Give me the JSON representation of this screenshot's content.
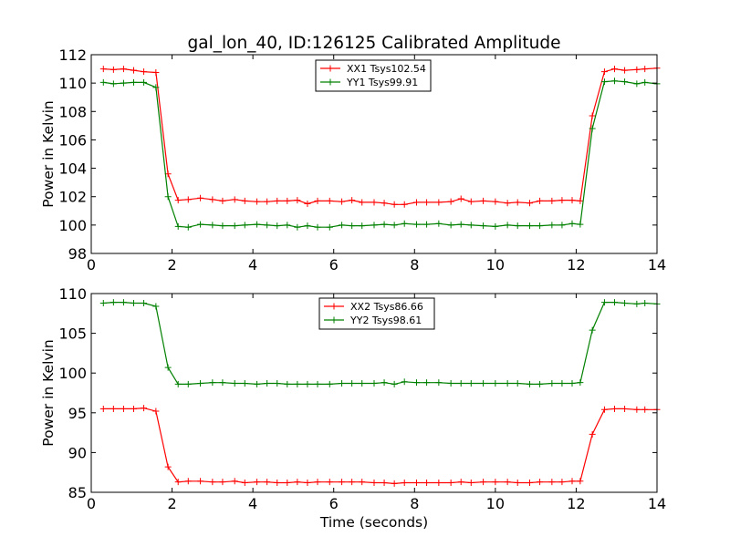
{
  "title": "gal_lon_40, ID:126125 Calibrated Amplitude",
  "colors": {
    "red": "#ff0000",
    "green": "#008000",
    "axis": "#000000"
  },
  "chart_data": [
    {
      "type": "line",
      "title": "gal_lon_40, ID:126125 Calibrated Amplitude",
      "xlabel": "",
      "ylabel": "Power in Kelvin",
      "xlim": [
        0,
        14
      ],
      "ylim": [
        98,
        112
      ],
      "xticks": [
        0,
        2,
        4,
        6,
        8,
        10,
        12,
        14
      ],
      "yticks": [
        98,
        100,
        102,
        104,
        106,
        108,
        110,
        112
      ],
      "xtick_labels": [
        "0",
        "2",
        "4",
        "6",
        "8",
        "10",
        "12",
        "14"
      ],
      "ytick_labels": [
        "98",
        "100",
        "102",
        "104",
        "106",
        "108",
        "110",
        "112"
      ],
      "grid": false,
      "legend_position": "top-center",
      "x": [
        0.3,
        0.55,
        0.8,
        1.05,
        1.3,
        1.6,
        1.9,
        2.15,
        2.4,
        2.7,
        3.0,
        3.25,
        3.55,
        3.8,
        4.1,
        4.35,
        4.6,
        4.85,
        5.1,
        5.35,
        5.6,
        5.9,
        6.2,
        6.45,
        6.7,
        7.0,
        7.25,
        7.5,
        7.75,
        8.05,
        8.3,
        8.6,
        8.9,
        9.15,
        9.4,
        9.7,
        10.0,
        10.3,
        10.55,
        10.85,
        11.1,
        11.4,
        11.65,
        11.9,
        12.1,
        12.4,
        12.7,
        12.95,
        13.2,
        13.5,
        13.7,
        14.0
      ],
      "series": [
        {
          "name": "XX1 Tsys102.54",
          "color": "#ff0000",
          "values": [
            111.0,
            110.95,
            111.0,
            110.9,
            110.8,
            110.75,
            103.6,
            101.75,
            101.8,
            101.9,
            101.8,
            101.7,
            101.8,
            101.7,
            101.65,
            101.65,
            101.7,
            101.7,
            101.75,
            101.5,
            101.7,
            101.7,
            101.65,
            101.75,
            101.6,
            101.6,
            101.55,
            101.45,
            101.45,
            101.6,
            101.6,
            101.6,
            101.65,
            101.85,
            101.65,
            101.7,
            101.65,
            101.55,
            101.6,
            101.55,
            101.7,
            101.7,
            101.75,
            101.75,
            101.7,
            107.7,
            110.8,
            111.0,
            110.9,
            110.95,
            111.0,
            111.05
          ]
        },
        {
          "name": "YY1 Tsys99.91",
          "color": "#008000",
          "values": [
            110.05,
            109.95,
            110.0,
            110.05,
            110.05,
            109.7,
            102.0,
            99.9,
            99.85,
            100.05,
            100.0,
            99.95,
            99.95,
            100.0,
            100.05,
            100.0,
            99.95,
            100.0,
            99.85,
            99.95,
            99.85,
            99.85,
            100.0,
            99.95,
            99.95,
            100.0,
            100.05,
            100.0,
            100.1,
            100.05,
            100.05,
            100.1,
            100.0,
            100.05,
            100.0,
            99.95,
            99.9,
            100.0,
            99.95,
            99.95,
            99.95,
            100.0,
            100.0,
            100.1,
            100.05,
            106.8,
            110.1,
            110.15,
            110.1,
            109.95,
            110.05,
            109.95
          ]
        }
      ]
    },
    {
      "type": "line",
      "title": "",
      "xlabel": "Time (seconds)",
      "ylabel": "Power in Kelvin",
      "xlim": [
        0,
        14
      ],
      "ylim": [
        85,
        110
      ],
      "xticks": [
        0,
        2,
        4,
        6,
        8,
        10,
        12,
        14
      ],
      "yticks": [
        85,
        90,
        95,
        100,
        105,
        110
      ],
      "xtick_labels": [
        "0",
        "2",
        "4",
        "6",
        "8",
        "10",
        "12",
        "14"
      ],
      "ytick_labels": [
        "85",
        "90",
        "95",
        "100",
        "105",
        "110"
      ],
      "grid": false,
      "legend_position": "top-center",
      "x": [
        0.3,
        0.55,
        0.8,
        1.05,
        1.3,
        1.6,
        1.9,
        2.15,
        2.4,
        2.7,
        3.0,
        3.25,
        3.55,
        3.8,
        4.1,
        4.35,
        4.6,
        4.85,
        5.1,
        5.35,
        5.6,
        5.9,
        6.2,
        6.45,
        6.7,
        7.0,
        7.25,
        7.5,
        7.75,
        8.05,
        8.3,
        8.6,
        8.9,
        9.15,
        9.4,
        9.7,
        10.0,
        10.3,
        10.55,
        10.85,
        11.1,
        11.4,
        11.65,
        11.9,
        12.1,
        12.4,
        12.7,
        12.95,
        13.2,
        13.5,
        13.7,
        14.0
      ],
      "series": [
        {
          "name": "XX2 Tsys86.66",
          "color": "#ff0000",
          "values": [
            95.5,
            95.5,
            95.5,
            95.5,
            95.6,
            95.2,
            88.2,
            86.3,
            86.4,
            86.4,
            86.3,
            86.3,
            86.4,
            86.2,
            86.3,
            86.3,
            86.2,
            86.2,
            86.3,
            86.2,
            86.3,
            86.3,
            86.3,
            86.3,
            86.3,
            86.2,
            86.2,
            86.1,
            86.2,
            86.2,
            86.2,
            86.2,
            86.2,
            86.3,
            86.2,
            86.3,
            86.3,
            86.3,
            86.2,
            86.2,
            86.3,
            86.3,
            86.3,
            86.4,
            86.4,
            92.3,
            95.4,
            95.5,
            95.5,
            95.4,
            95.4,
            95.4
          ]
        },
        {
          "name": "YY2 Tsys98.61",
          "color": "#008000",
          "values": [
            108.8,
            108.9,
            108.9,
            108.8,
            108.8,
            108.4,
            100.7,
            98.6,
            98.6,
            98.7,
            98.8,
            98.8,
            98.7,
            98.7,
            98.6,
            98.7,
            98.7,
            98.6,
            98.6,
            98.6,
            98.6,
            98.6,
            98.7,
            98.7,
            98.7,
            98.7,
            98.8,
            98.6,
            98.9,
            98.8,
            98.8,
            98.8,
            98.7,
            98.7,
            98.7,
            98.7,
            98.7,
            98.7,
            98.7,
            98.6,
            98.6,
            98.7,
            98.7,
            98.7,
            98.8,
            105.4,
            108.9,
            108.9,
            108.8,
            108.7,
            108.8,
            108.7
          ]
        }
      ]
    }
  ]
}
